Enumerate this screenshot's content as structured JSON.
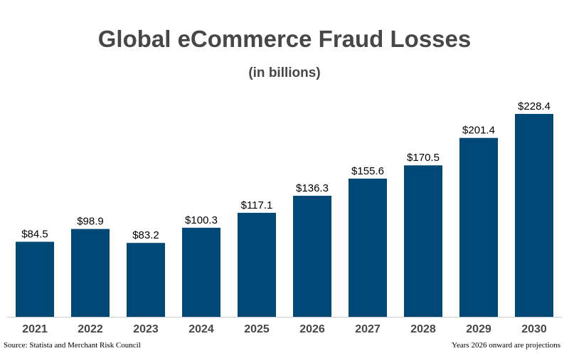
{
  "chart_data": {
    "type": "bar",
    "title": "Global eCommerce Fraud Losses",
    "subtitle": "(in billions)",
    "categories": [
      "2021",
      "2022",
      "2023",
      "2024",
      "2025",
      "2026",
      "2027",
      "2028",
      "2029",
      "2030"
    ],
    "values": [
      84.5,
      98.9,
      83.2,
      100.3,
      117.1,
      136.3,
      155.6,
      170.5,
      201.4,
      228.4
    ],
    "value_labels": [
      "$84.5",
      "$98.9",
      "$83.2",
      "$100.3",
      "$117.1",
      "$136.3",
      "$155.6",
      "$170.5",
      "$201.4",
      "$228.4"
    ],
    "xlabel": "",
    "ylabel": "",
    "ylim": [
      0,
      228.4
    ],
    "grid": false,
    "colors": {
      "bar": "#004876",
      "text": "#474747",
      "axis": "#cccccc"
    }
  },
  "footer": {
    "source": "Source: Statista and Merchant Risk Council",
    "note": "Years 2026 onward are projections"
  }
}
